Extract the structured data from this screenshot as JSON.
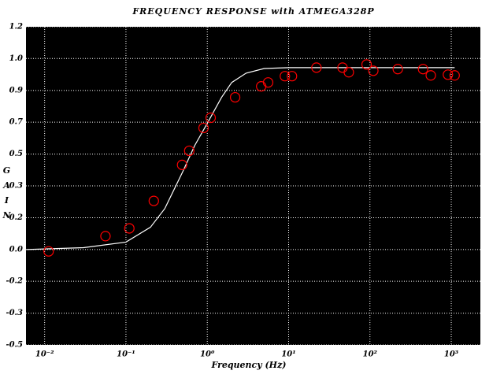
{
  "chart_data": {
    "type": "line",
    "title": "FREQUENCY RESPONSE with ATMEGA328P",
    "x_label": "Frequency (Hz)",
    "y_label": "GAIN",
    "log_x": true,
    "grid": true,
    "background": "#000000",
    "xlim": [
      0.0059,
      2280
    ],
    "xticks": [
      {
        "value": 0.01,
        "label": "10⁻²"
      },
      {
        "value": 0.1,
        "label": "10⁻¹"
      },
      {
        "value": 1,
        "label": "10⁰"
      },
      {
        "value": 10,
        "label": "10¹"
      },
      {
        "value": 100,
        "label": "10²"
      },
      {
        "value": 1000,
        "label": "10³"
      }
    ],
    "ylim": [
      -0.514,
      1.2
    ],
    "yticks": [
      1.2,
      {
        "value": 1.029,
        "label": "1.0"
      },
      {
        "value": 0.857,
        "label": "0.9"
      },
      {
        "value": 0.686,
        "label": "0.7"
      },
      {
        "value": 0.514,
        "label": "0.5"
      },
      {
        "value": 0.343,
        "label": "0.3"
      },
      {
        "value": 0.171,
        "label": "0.2"
      },
      {
        "value": 0,
        "label": "0.0"
      },
      {
        "value": -0.171,
        "label": "-0.2"
      },
      {
        "value": -0.343,
        "label": "-0.3"
      },
      {
        "value": -0.514,
        "label": "-0.5"
      }
    ],
    "series": [
      {
        "kind": "line",
        "color": "#ffffff",
        "x": [
          0.006,
          0.01,
          0.03,
          0.1,
          0.2,
          0.3,
          0.5,
          0.7,
          1,
          1.5,
          2,
          3,
          5,
          10,
          100,
          1100
        ],
        "values": [
          0.0,
          0.003,
          0.01,
          0.04,
          0.12,
          0.22,
          0.42,
          0.56,
          0.68,
          0.82,
          0.9,
          0.95,
          0.975,
          0.98,
          0.98,
          0.98
        ]
      },
      {
        "kind": "scatter",
        "color": "#ff0000",
        "x": [
          0.0112,
          0.056,
          0.11,
          0.22,
          0.49,
          0.6,
          0.9,
          1.1,
          2.2,
          4.6,
          5.6,
          9,
          11,
          22,
          46,
          55,
          91,
          110,
          220,
          450,
          560,
          910,
          1100
        ],
        "values": [
          -0.01,
          0.072,
          0.114,
          0.262,
          0.456,
          0.532,
          0.655,
          0.71,
          0.82,
          0.879,
          0.9,
          0.934,
          0.934,
          0.98,
          0.98,
          0.955,
          0.997,
          0.963,
          0.972,
          0.972,
          0.938,
          0.942,
          0.938
        ]
      }
    ]
  }
}
